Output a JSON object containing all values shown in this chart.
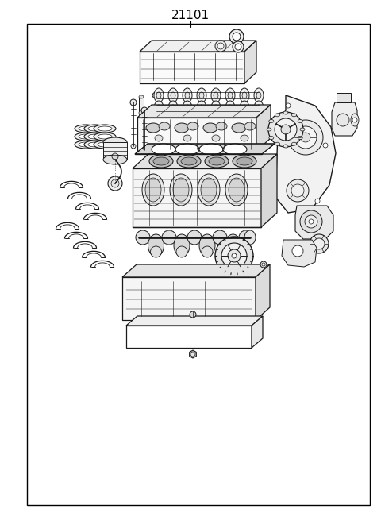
{
  "title": "21101",
  "background_color": "#ffffff",
  "border_color": "#000000",
  "line_color": "#1a1a1a",
  "fig_width": 4.8,
  "fig_height": 6.56,
  "dpi": 100,
  "title_fontsize": 11,
  "border": [
    0.07,
    0.03,
    0.97,
    0.955
  ]
}
